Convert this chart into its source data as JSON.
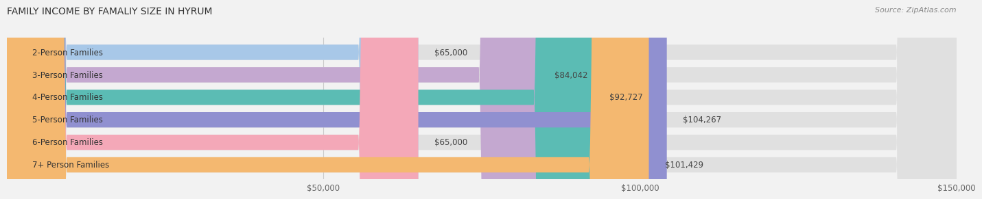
{
  "title": "FAMILY INCOME BY FAMALIY SIZE IN HYRUM",
  "source": "Source: ZipAtlas.com",
  "categories": [
    "2-Person Families",
    "3-Person Families",
    "4-Person Families",
    "5-Person Families",
    "6-Person Families",
    "7+ Person Families"
  ],
  "values": [
    65000,
    84042,
    92727,
    104267,
    65000,
    101429
  ],
  "bar_colors": [
    "#a8c8e8",
    "#c4a8d0",
    "#5bbcb4",
    "#9090d0",
    "#f4a8b8",
    "#f4b870"
  ],
  "value_labels": [
    "$65,000",
    "$84,042",
    "$92,727",
    "$104,267",
    "$65,000",
    "$101,429"
  ],
  "xlim": [
    0,
    150000
  ],
  "xticks": [
    50000,
    100000,
    150000
  ],
  "xticklabels": [
    "$50,000",
    "$100,000",
    "$150,000"
  ],
  "background_color": "#f2f2f2",
  "bar_bg_color": "#e0e0e0",
  "title_fontsize": 10,
  "label_fontsize": 8.5,
  "value_fontsize": 8.5,
  "bar_height": 0.68
}
